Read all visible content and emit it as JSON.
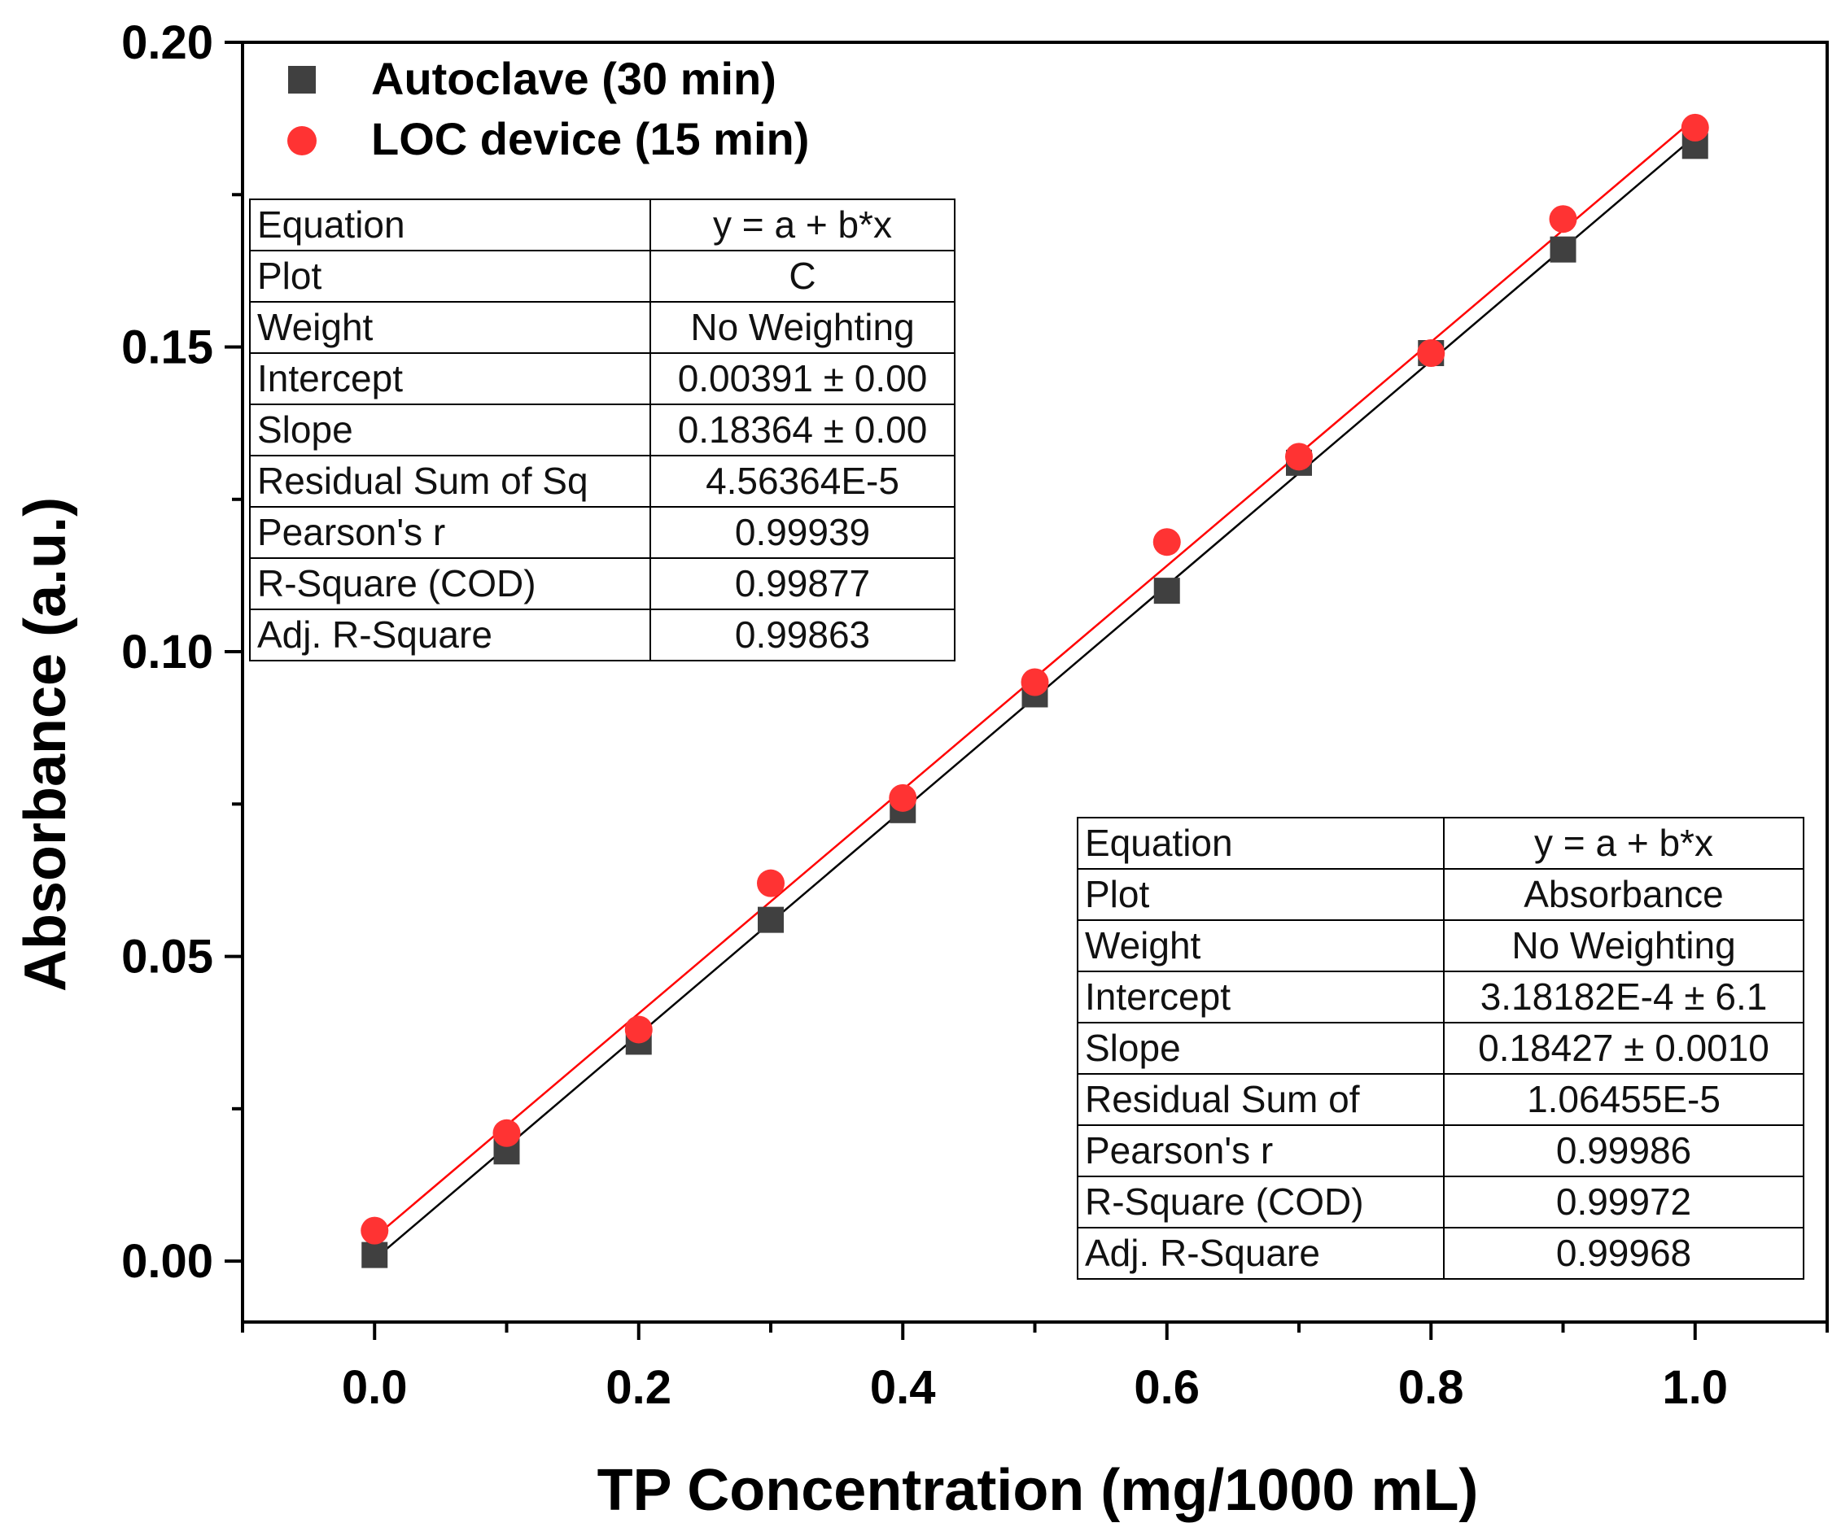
{
  "chart_data": {
    "type": "scatter",
    "xlabel": "TP Concentration (mg/1000 mL)",
    "ylabel": "Absorbance (a.u.)",
    "xlim": [
      -0.1,
      1.1
    ],
    "ylim": [
      -0.01,
      0.2
    ],
    "x_ticks": [
      "0.0",
      "0.2",
      "0.4",
      "0.6",
      "0.8",
      "1.0"
    ],
    "y_ticks": [
      "0.00",
      "0.05",
      "0.10",
      "0.15",
      "0.20"
    ],
    "grid": false,
    "legend_position": "top-left",
    "series": [
      {
        "name": "Autoclave (30 min)",
        "marker": "square",
        "color": "#404040",
        "fit_line_color": "#000000",
        "x": [
          0.0,
          0.1,
          0.2,
          0.3,
          0.4,
          0.5,
          0.6,
          0.7,
          0.8,
          0.9,
          1.0
        ],
        "y": [
          0.001,
          0.018,
          0.036,
          0.056,
          0.074,
          0.093,
          0.11,
          0.131,
          0.149,
          0.166,
          0.183
        ],
        "fit": {
          "intercept": 0.000318182,
          "slope": 0.18427
        }
      },
      {
        "name": "LOC device (15 min)",
        "marker": "circle",
        "color": "#ff3333",
        "fit_line_color": "#ff0000",
        "x": [
          0.0,
          0.1,
          0.2,
          0.3,
          0.4,
          0.5,
          0.6,
          0.7,
          0.8,
          0.9,
          1.0
        ],
        "y": [
          0.005,
          0.021,
          0.038,
          0.062,
          0.076,
          0.095,
          0.118,
          0.132,
          0.149,
          0.171,
          0.186
        ],
        "fit": {
          "intercept": 0.00391,
          "slope": 0.18364
        }
      }
    ],
    "tables": {
      "loc": [
        [
          "Equation",
          "y = a + b*x"
        ],
        [
          "Plot",
          "C"
        ],
        [
          "Weight",
          "No Weighting"
        ],
        [
          "Intercept",
          "0.00391 ± 0.00"
        ],
        [
          "Slope",
          "0.18364 ± 0.00"
        ],
        [
          "Residual Sum of Sq",
          "4.56364E-5"
        ],
        [
          "Pearson's r",
          "0.99939"
        ],
        [
          "R-Square (COD)",
          "0.99877"
        ],
        [
          "Adj. R-Square",
          "0.99863"
        ]
      ],
      "autoclave": [
        [
          "Equation",
          "y = a + b*x"
        ],
        [
          "Plot",
          "Absorbance"
        ],
        [
          "Weight",
          "No Weighting"
        ],
        [
          "Intercept",
          "3.18182E-4 ± 6.1"
        ],
        [
          "Slope",
          "0.18427 ± 0.0010"
        ],
        [
          "Residual Sum of",
          "1.06455E-5"
        ],
        [
          "Pearson's r",
          "0.99986"
        ],
        [
          "R-Square (COD)",
          "0.99972"
        ],
        [
          "Adj. R-Square",
          "0.99968"
        ]
      ]
    }
  }
}
